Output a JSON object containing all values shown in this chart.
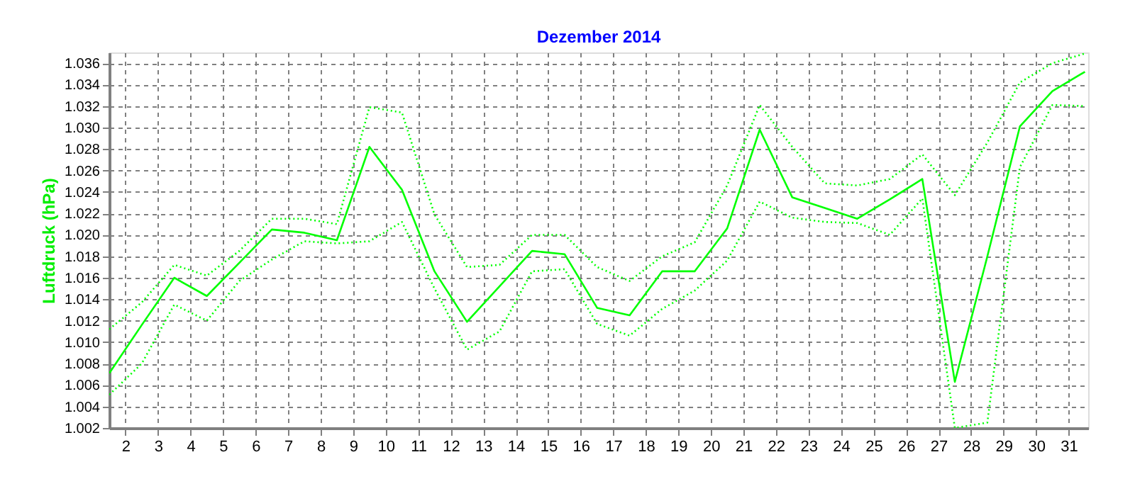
{
  "chart_data": {
    "type": "line",
    "title": "Dezember 2014",
    "ylabel": "Luftdruck  (hPa)",
    "x": [
      1.5,
      2.5,
      3.5,
      4.5,
      5.5,
      6.5,
      7.5,
      8.5,
      9.5,
      10.5,
      11.5,
      12.5,
      13.5,
      14.5,
      15.5,
      16.5,
      17.5,
      18.5,
      19.5,
      20.5,
      21.5,
      22.5,
      23.5,
      24.5,
      25.5,
      26.5,
      27.5,
      28.5,
      29.5,
      30.5,
      31.5
    ],
    "series": [
      {
        "color": "#00ff00",
        "line_style": "dotted",
        "values": [
          1.0112,
          1.0137,
          1.0172,
          1.0162,
          1.0185,
          1.0215,
          1.0215,
          1.021,
          1.0319,
          1.0314,
          1.0219,
          1.017,
          1.0172,
          1.02,
          1.02,
          1.017,
          1.0157,
          1.018,
          1.0193,
          1.0246,
          1.0321,
          1.0282,
          1.0248,
          1.0246,
          1.0252,
          1.0275,
          1.0237,
          1.0286,
          1.0342,
          1.036,
          1.0369
        ]
      },
      {
        "color": "#00ff00",
        "line_style": "solid",
        "values": [
          1.0071,
          1.0116,
          1.016,
          1.0143,
          1.0174,
          1.0205,
          1.0202,
          1.0195,
          1.0282,
          1.0242,
          1.0166,
          1.0119,
          1.0152,
          1.0185,
          1.0182,
          1.0132,
          1.0125,
          1.0166,
          1.0166,
          1.0206,
          1.0298,
          1.0235,
          1.0225,
          1.0215,
          1.0233,
          1.0252,
          1.0063,
          1.018,
          1.0301,
          1.0334,
          1.0352
        ]
      },
      {
        "color": "#00ff00",
        "line_style": "dotted",
        "values": [
          1.0051,
          1.008,
          1.0135,
          1.012,
          1.0157,
          1.0177,
          1.0194,
          1.0192,
          1.0194,
          1.0212,
          1.015,
          1.0093,
          1.011,
          1.0166,
          1.0168,
          1.0117,
          1.0106,
          1.0131,
          1.0148,
          1.0176,
          1.0231,
          1.0216,
          1.0212,
          1.0211,
          1.02,
          1.0234,
          1.002,
          1.0025,
          1.0263,
          1.0321,
          1.032
        ]
      }
    ],
    "xlim": [
      1.5,
      31.6
    ],
    "xticks": [
      2,
      3,
      4,
      5,
      6,
      7,
      8,
      9,
      10,
      11,
      12,
      13,
      14,
      15,
      16,
      17,
      18,
      19,
      20,
      21,
      22,
      23,
      24,
      25,
      26,
      27,
      28,
      29,
      30,
      31
    ],
    "ylim": [
      1.002,
      1.037
    ],
    "yticks": [
      1.002,
      1.004,
      1.006,
      1.008,
      {
        "value": 1.01,
        "label": "1.010"
      },
      1.012,
      1.014,
      1.016,
      1.018,
      {
        "value": 1.02,
        "label": "1.020"
      },
      1.022,
      1.024,
      1.026,
      1.028,
      {
        "value": 1.03,
        "label": "1.030"
      },
      1.032,
      1.034,
      1.036
    ],
    "grid": true,
    "marker": "none"
  }
}
